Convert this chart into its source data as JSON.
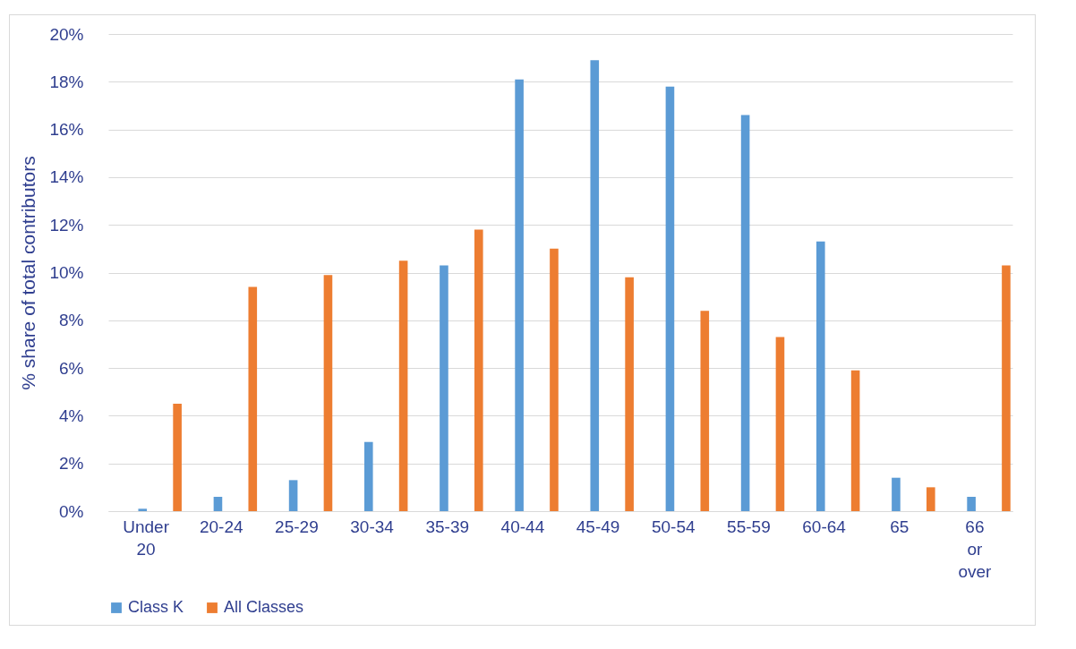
{
  "chart_data": {
    "type": "bar",
    "ylabel": "% share of total contributors",
    "categories": [
      "Under 20",
      "20-24",
      "25-29",
      "30-34",
      "35-39",
      "40-44",
      "45-49",
      "50-54",
      "55-59",
      "60-64",
      "65",
      "66 or over"
    ],
    "series": [
      {
        "name": "Class K",
        "color": "#5b9bd5",
        "values": [
          0.1,
          0.6,
          1.3,
          2.9,
          10.3,
          18.1,
          18.9,
          17.8,
          16.6,
          11.3,
          1.4,
          0.6
        ]
      },
      {
        "name": "All Classes",
        "color": "#ed7d31",
        "values": [
          4.5,
          9.4,
          9.9,
          10.5,
          11.8,
          11.0,
          9.8,
          8.4,
          7.3,
          5.9,
          1.0,
          10.3
        ]
      }
    ],
    "ylim": [
      0,
      20
    ],
    "yticks": [
      {
        "value": 0,
        "label": "0%"
      },
      {
        "value": 2,
        "label": "2%"
      },
      {
        "value": 4,
        "label": "4%"
      },
      {
        "value": 6,
        "label": "6%"
      },
      {
        "value": 8,
        "label": "8%"
      },
      {
        "value": 10,
        "label": "10%"
      },
      {
        "value": 12,
        "label": "12%"
      },
      {
        "value": 14,
        "label": "14%"
      },
      {
        "value": 16,
        "label": "16%"
      },
      {
        "value": 18,
        "label": "18%"
      },
      {
        "value": 20,
        "label": "20%"
      }
    ],
    "grid": "y",
    "legend": "bottom"
  }
}
